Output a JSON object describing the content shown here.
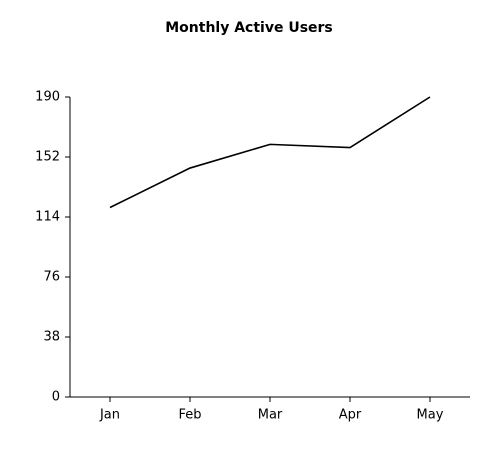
{
  "chart_data": {
    "type": "line",
    "title": "Monthly Active Users",
    "categories": [
      "Jan",
      "Feb",
      "Mar",
      "Apr",
      "May"
    ],
    "values": [
      120,
      145,
      160,
      158,
      190
    ],
    "color": "#000000",
    "ylim": [
      0,
      190
    ],
    "yticks": [
      0,
      38,
      76,
      114,
      152,
      190
    ]
  }
}
